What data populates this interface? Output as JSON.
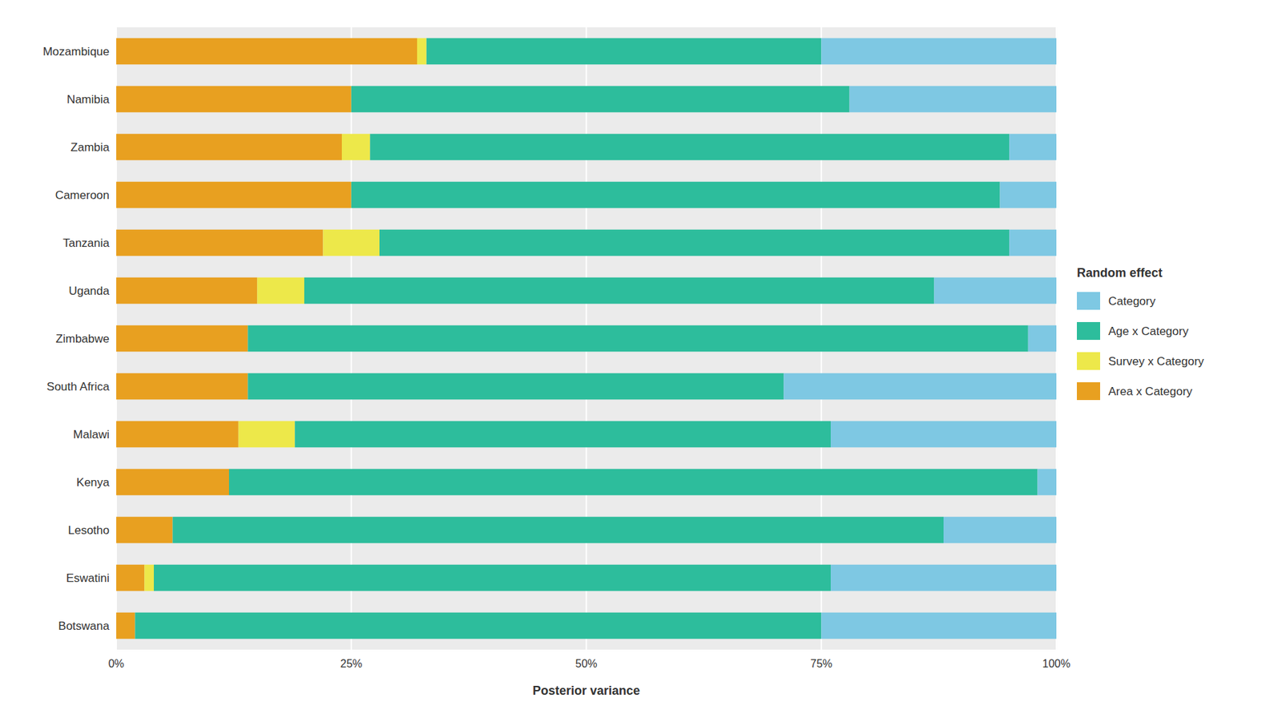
{
  "chart_data": {
    "type": "bar",
    "orientation": "horizontal",
    "stacked": true,
    "categories": [
      "Botswana",
      "Eswatini",
      "Lesotho",
      "Kenya",
      "Malawi",
      "South Africa",
      "Zimbabwe",
      "Uganda",
      "Tanzania",
      "Cameroon",
      "Zambia",
      "Namibia",
      "Mozambique"
    ],
    "series": [
      {
        "name": "Area x Category",
        "color": "#E8A020",
        "values": [
          0.02,
          0.03,
          0.06,
          0.12,
          0.13,
          0.14,
          0.14,
          0.15,
          0.22,
          0.25,
          0.24,
          0.25,
          0.32
        ]
      },
      {
        "name": "Survey x Category",
        "color": "#EDE84A",
        "values": [
          0.0,
          0.01,
          0.0,
          0.0,
          0.06,
          0.0,
          0.0,
          0.05,
          0.06,
          0.0,
          0.03,
          0.0,
          0.01
        ]
      },
      {
        "name": "Age x Category",
        "color": "#2DBD9C",
        "values": [
          0.73,
          0.72,
          0.82,
          0.86,
          0.57,
          0.57,
          0.83,
          0.67,
          0.67,
          0.69,
          0.68,
          0.53,
          0.42
        ]
      },
      {
        "name": "Category",
        "color": "#7EC8E3",
        "values": [
          0.25,
          0.24,
          0.12,
          0.02,
          0.24,
          0.29,
          0.03,
          0.13,
          0.05,
          0.06,
          0.05,
          0.22,
          0.25
        ]
      }
    ],
    "x_label": "Posterior variance",
    "xlim": [
      0,
      1.0
    ],
    "xticks": [
      {
        "value": 0,
        "label": "0%"
      },
      {
        "value": 0.25,
        "label": "25%"
      },
      {
        "value": 0.5,
        "label": "50%"
      },
      {
        "value": 0.75,
        "label": "75%"
      },
      {
        "value": 1.0,
        "label": "100%"
      }
    ],
    "grid": true,
    "legend": "right",
    "legend_title": "Random effect"
  }
}
